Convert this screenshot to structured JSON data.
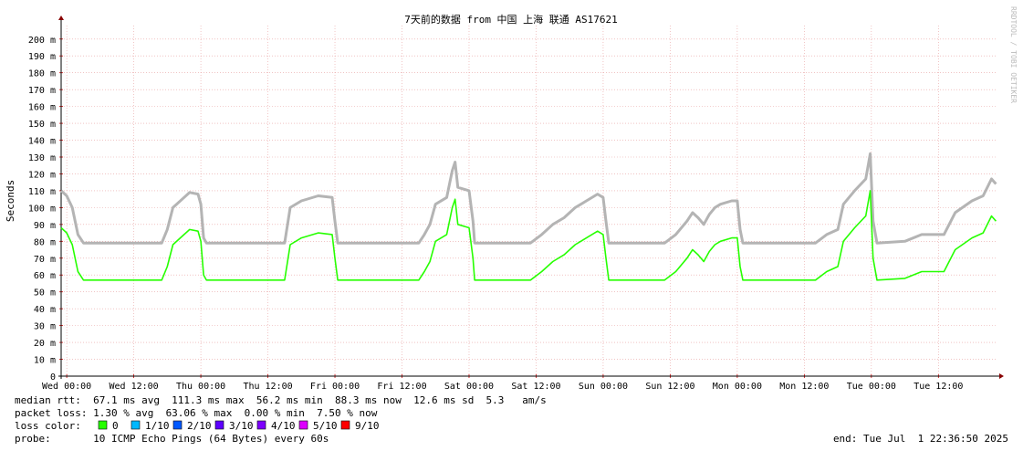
{
  "chart_data": {
    "type": "line",
    "title": "7天前的数据 from 中国 上海 联通 AS17621",
    "y_label": "Seconds",
    "watermark": "RRDTOOL / TOBI OETIKER",
    "xlim": [
      -1,
      166.4
    ],
    "xticks": [
      {
        "value": 0,
        "label": "Wed 00:00"
      },
      {
        "value": 12,
        "label": "Wed 12:00"
      },
      {
        "value": 24,
        "label": "Thu 00:00"
      },
      {
        "value": 36,
        "label": "Thu 12:00"
      },
      {
        "value": 48,
        "label": "Fri 00:00"
      },
      {
        "value": 60,
        "label": "Fri 12:00"
      },
      {
        "value": 72,
        "label": "Sat 00:00"
      },
      {
        "value": 84,
        "label": "Sat 12:00"
      },
      {
        "value": 96,
        "label": "Sun 00:00"
      },
      {
        "value": 108,
        "label": "Sun 12:00"
      },
      {
        "value": 120,
        "label": "Mon 00:00"
      },
      {
        "value": 132,
        "label": "Mon 12:00"
      },
      {
        "value": 144,
        "label": "Tue 00:00"
      },
      {
        "value": 156,
        "label": "Tue 12:00"
      }
    ],
    "ylim": [
      0,
      0.208
    ],
    "yticks": [
      0,
      {
        "value": 0.01,
        "label": "10 m"
      },
      {
        "value": 0.02,
        "label": "20 m"
      },
      {
        "value": 0.03,
        "label": "30 m"
      },
      {
        "value": 0.04,
        "label": "40 m"
      },
      {
        "value": 0.05,
        "label": "50 m"
      },
      {
        "value": 0.06,
        "label": "60 m"
      },
      {
        "value": 0.07,
        "label": "70 m"
      },
      {
        "value": 0.08,
        "label": "80 m"
      },
      {
        "value": 0.09,
        "label": "90 m"
      },
      {
        "value": 0.1,
        "label": "100 m"
      },
      {
        "value": 0.11,
        "label": "110 m"
      },
      {
        "value": 0.12,
        "label": "120 m"
      },
      {
        "value": 0.13,
        "label": "130 m"
      },
      {
        "value": 0.14,
        "label": "140 m"
      },
      {
        "value": 0.15,
        "label": "150 m"
      },
      {
        "value": 0.16,
        "label": "160 m"
      },
      {
        "value": 0.17,
        "label": "170 m"
      },
      {
        "value": 0.18,
        "label": "180 m"
      },
      {
        "value": 0.19,
        "label": "190 m"
      },
      {
        "value": 0.2,
        "label": "200 m"
      }
    ],
    "grid": true,
    "x": [
      -1,
      0,
      1,
      2,
      3,
      17,
      18,
      19,
      21,
      22,
      23.5,
      24,
      24.5,
      25,
      39,
      40,
      42,
      45,
      47.5,
      48,
      48.5,
      63,
      64,
      65,
      66,
      68,
      69,
      69.5,
      70,
      72,
      72.7,
      73,
      83,
      85,
      87,
      89,
      91,
      93,
      95,
      96,
      96.5,
      97,
      107,
      109,
      111,
      112,
      113,
      114,
      115,
      116,
      117,
      119,
      120,
      120.5,
      121,
      134,
      136,
      138,
      139,
      141,
      143,
      143.8,
      144.3,
      145,
      150,
      153,
      157,
      159,
      162,
      164,
      165.5,
      166.3
    ],
    "series": [
      {
        "color": "#b4b4b4",
        "values": [
          0.11,
          0.107,
          0.1,
          0.084,
          0.079,
          0.079,
          0.087,
          0.1,
          0.106,
          0.109,
          0.108,
          0.102,
          0.082,
          0.079,
          0.079,
          0.1,
          0.104,
          0.107,
          0.106,
          0.092,
          0.079,
          0.079,
          0.084,
          0.09,
          0.102,
          0.106,
          0.122,
          0.127,
          0.112,
          0.11,
          0.092,
          0.079,
          0.079,
          0.084,
          0.09,
          0.094,
          0.1,
          0.104,
          0.108,
          0.106,
          0.092,
          0.079,
          0.079,
          0.084,
          0.092,
          0.097,
          0.094,
          0.09,
          0.096,
          0.1,
          0.102,
          0.104,
          0.104,
          0.087,
          0.079,
          0.079,
          0.084,
          0.087,
          0.102,
          0.11,
          0.117,
          0.132,
          0.092,
          0.079,
          0.08,
          0.084,
          0.084,
          0.097,
          0.104,
          0.107,
          0.117,
          0.114
        ]
      },
      {
        "color": "#26ff00",
        "values": [
          0.088,
          0.085,
          0.078,
          0.062,
          0.057,
          0.057,
          0.065,
          0.078,
          0.084,
          0.087,
          0.086,
          0.08,
          0.06,
          0.057,
          0.057,
          0.078,
          0.082,
          0.085,
          0.084,
          0.07,
          0.057,
          0.057,
          0.062,
          0.068,
          0.08,
          0.084,
          0.1,
          0.105,
          0.09,
          0.088,
          0.07,
          0.057,
          0.057,
          0.062,
          0.068,
          0.072,
          0.078,
          0.082,
          0.086,
          0.084,
          0.07,
          0.057,
          0.057,
          0.062,
          0.07,
          0.075,
          0.072,
          0.068,
          0.074,
          0.078,
          0.08,
          0.082,
          0.082,
          0.065,
          0.057,
          0.057,
          0.062,
          0.065,
          0.08,
          0.088,
          0.095,
          0.11,
          0.07,
          0.057,
          0.058,
          0.062,
          0.062,
          0.075,
          0.082,
          0.085,
          0.095,
          0.092
        ]
      }
    ],
    "stats": [
      "median rtt:  67.1 ms avg  111.3 ms max  56.2 ms min  88.3 ms now  12.6 ms sd  5.3   am/s",
      "packet loss: 1.30 % avg  63.06 % max  0.00 % min  7.50 % now"
    ],
    "legend": {
      "title": "loss color:",
      "items": [
        {
          "label": "0",
          "color": "#26ff00"
        },
        {
          "label": "1/10",
          "color": "#00b8ff"
        },
        {
          "label": "2/10",
          "color": "#0059ff"
        },
        {
          "label": "3/10",
          "color": "#5e00ff"
        },
        {
          "label": "4/10",
          "color": "#7e00ff"
        },
        {
          "label": "5/10",
          "color": "#dd00ff"
        },
        {
          "label": "9/10",
          "color": "#ff0000"
        }
      ]
    },
    "probe": "probe:       10 ICMP Echo Pings (64 Bytes) every 60s",
    "end": "end: Tue Jul  1 22:36:50 2025"
  }
}
